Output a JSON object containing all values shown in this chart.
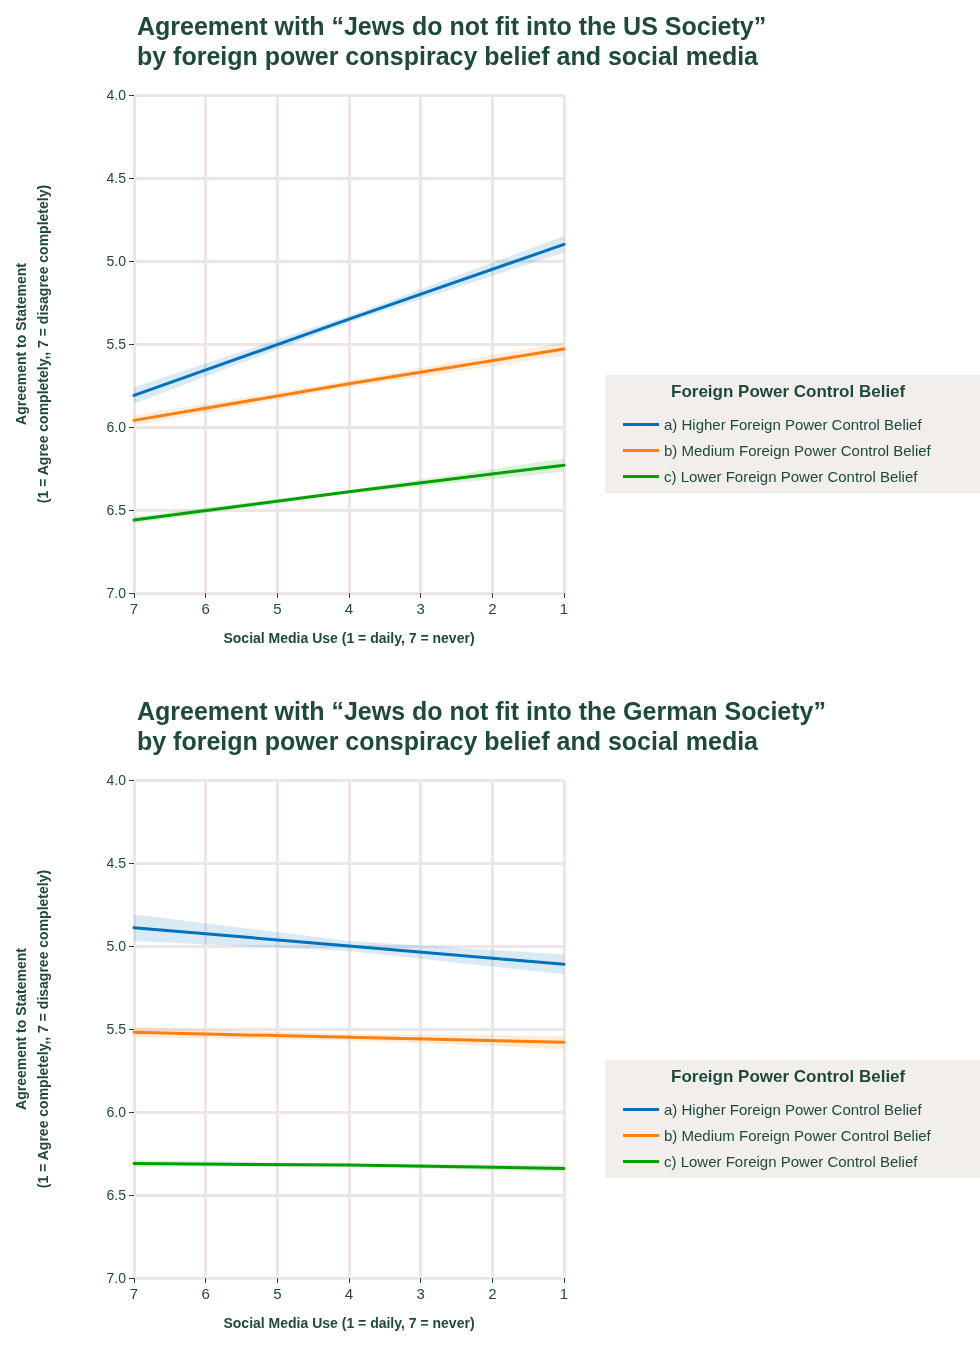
{
  "chart_data": [
    {
      "type": "line",
      "title": "Agreement with “Jews do not fit into the US Society”\nby foreign power conspiracy belief and social media",
      "xlabel": "Social Media Use (1 = daily, 7 = never)",
      "ylabel": "Agreement to Statement\n(1 = Agree completely,, 7 = disagree completely)",
      "legend_title": "Foreign Power Control Belief",
      "legend": "right",
      "grid": true,
      "line_style": "solid",
      "marker": "none",
      "xlim": [
        7,
        1
      ],
      "xticks": [
        7,
        6,
        5,
        4,
        3,
        2,
        1
      ],
      "ylim": [
        7,
        4
      ],
      "yticks": [
        {
          "value": 4,
          "label": "4.0"
        },
        {
          "value": 4.5,
          "label": "4.5"
        },
        {
          "value": 5,
          "label": "5.0"
        },
        {
          "value": 5.5,
          "label": "5.5"
        },
        {
          "value": 6,
          "label": "6.0"
        },
        {
          "value": 6.5,
          "label": "6.5"
        },
        {
          "value": 7,
          "label": "7.0"
        }
      ],
      "x": [
        7,
        4,
        1
      ],
      "series": [
        {
          "name": "a) Higher Foreign Power Control Belief",
          "color": "#0072bd",
          "values": [
            5.81,
            5.35,
            4.9
          ],
          "lower": [
            5.76,
            5.33,
            4.85
          ],
          "upper": [
            5.86,
            5.37,
            4.95
          ]
        },
        {
          "name": "b) Medium Foreign Power Control Belief",
          "color": "#ff7f0e",
          "values": [
            5.96,
            5.74,
            5.53
          ],
          "lower": [
            5.93,
            5.72,
            5.49
          ],
          "upper": [
            5.99,
            5.76,
            5.57
          ]
        },
        {
          "name": "c) Lower Foreign Power Control Belief",
          "color": "#00a000",
          "values": [
            6.56,
            6.39,
            6.23
          ],
          "lower": [
            6.54,
            6.38,
            6.19
          ],
          "upper": [
            6.58,
            6.4,
            6.27
          ]
        }
      ]
    },
    {
      "type": "line",
      "title": "Agreement with “Jews do not fit into the German Society”\nby foreign power conspiracy belief and social media",
      "xlabel": "Social Media Use (1 = daily, 7 = never)",
      "ylabel": "Agreement to Statement\n(1 = Agree completely,, 7 = disagree completely)",
      "legend_title": "Foreign Power Control Belief",
      "legend": "right",
      "grid": true,
      "line_style": "solid",
      "marker": "none",
      "xlim": [
        7,
        1
      ],
      "xticks": [
        7,
        6,
        5,
        4,
        3,
        2,
        1
      ],
      "ylim": [
        7,
        4
      ],
      "yticks": [
        {
          "value": 4,
          "label": "4.0"
        },
        {
          "value": 4.5,
          "label": "4.5"
        },
        {
          "value": 5,
          "label": "5.0"
        },
        {
          "value": 5.5,
          "label": "5.5"
        },
        {
          "value": 6,
          "label": "6.0"
        },
        {
          "value": 6.5,
          "label": "6.5"
        },
        {
          "value": 7,
          "label": "7.0"
        }
      ],
      "x": [
        7,
        4,
        1
      ],
      "series": [
        {
          "name": "a) Higher Foreign Power Control Belief",
          "color": "#0072bd",
          "values": [
            4.89,
            5.0,
            5.11
          ],
          "lower": [
            4.81,
            4.97,
            5.05
          ],
          "upper": [
            4.97,
            5.03,
            5.17
          ]
        },
        {
          "name": "b) Medium Foreign Power Control Belief",
          "color": "#ff7f0e",
          "values": [
            5.52,
            5.55,
            5.58
          ],
          "lower": [
            5.49,
            5.53,
            5.54
          ],
          "upper": [
            5.55,
            5.57,
            5.62
          ]
        },
        {
          "name": "c) Lower Foreign Power Control Belief",
          "color": "#00a000",
          "values": [
            6.31,
            6.32,
            6.34
          ],
          "lower": [
            6.29,
            6.31,
            6.32
          ],
          "upper": [
            6.33,
            6.33,
            6.36
          ]
        }
      ]
    }
  ]
}
